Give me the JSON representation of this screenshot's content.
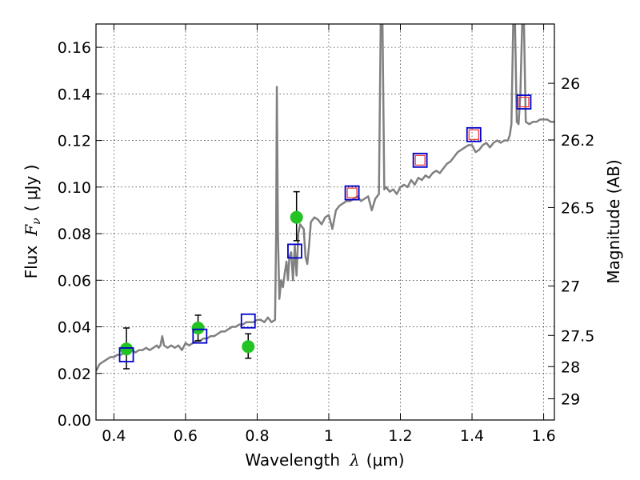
{
  "chart_data": {
    "type": "scatter",
    "xlabel_prefix": "Wavelength",
    "xlabel_symbol": "λ",
    "xlabel_unit": "(μm)",
    "ylabel_prefix": "Flux",
    "ylabel_symbol": "F",
    "ylabel_subscript": "ν",
    "ylabel_unit": "( μJy )",
    "y2label": "Magnitude (AB)",
    "xlim": [
      0.35,
      1.63
    ],
    "ylim": [
      0.0,
      0.17
    ],
    "grid": true,
    "x_ticks": [
      {
        "value": 0.4,
        "label": "0.4"
      },
      {
        "value": 0.6,
        "label": "0.6"
      },
      {
        "value": 0.8,
        "label": "0.8"
      },
      {
        "value": 1.0,
        "label": "1"
      },
      {
        "value": 1.2,
        "label": "1.2"
      },
      {
        "value": 1.4,
        "label": "1.4"
      },
      {
        "value": 1.6,
        "label": "1.6"
      }
    ],
    "y_ticks": [
      {
        "value": 0.0,
        "label": "0.00"
      },
      {
        "value": 0.02,
        "label": "0.02"
      },
      {
        "value": 0.04,
        "label": "0.04"
      },
      {
        "value": 0.06,
        "label": "0.06"
      },
      {
        "value": 0.08,
        "label": "0.08"
      },
      {
        "value": 0.1,
        "label": "0.10"
      },
      {
        "value": 0.12,
        "label": "0.12"
      },
      {
        "value": 0.14,
        "label": "0.14"
      },
      {
        "value": 0.16,
        "label": "0.16"
      }
    ],
    "y2_ticks": [
      {
        "value": 26,
        "label": "26"
      },
      {
        "value": 26.2,
        "label": "26.2"
      },
      {
        "value": 26.5,
        "label": "26.5"
      },
      {
        "value": 27,
        "label": "27"
      },
      {
        "value": 27.5,
        "label": "27.5"
      },
      {
        "value": 28,
        "label": "28"
      },
      {
        "value": 29,
        "label": "29"
      }
    ],
    "series": [
      {
        "kind": "line",
        "color": "#808080",
        "points": [
          [
            0.35,
            0.021
          ],
          [
            0.36,
            0.024
          ],
          [
            0.37,
            0.025
          ],
          [
            0.38,
            0.026
          ],
          [
            0.39,
            0.027
          ],
          [
            0.4,
            0.027
          ],
          [
            0.41,
            0.028
          ],
          [
            0.42,
            0.028
          ],
          [
            0.43,
            0.029
          ],
          [
            0.44,
            0.029
          ],
          [
            0.45,
            0.03
          ],
          [
            0.46,
            0.029
          ],
          [
            0.47,
            0.03
          ],
          [
            0.48,
            0.03
          ],
          [
            0.49,
            0.031
          ],
          [
            0.5,
            0.03
          ],
          [
            0.51,
            0.031
          ],
          [
            0.52,
            0.032
          ],
          [
            0.525,
            0.031
          ],
          [
            0.53,
            0.032
          ],
          [
            0.535,
            0.036
          ],
          [
            0.54,
            0.032
          ],
          [
            0.55,
            0.031
          ],
          [
            0.56,
            0.032
          ],
          [
            0.57,
            0.031
          ],
          [
            0.58,
            0.032
          ],
          [
            0.59,
            0.03
          ],
          [
            0.6,
            0.033
          ],
          [
            0.61,
            0.032
          ],
          [
            0.62,
            0.033
          ],
          [
            0.63,
            0.034
          ],
          [
            0.64,
            0.034
          ],
          [
            0.65,
            0.035
          ],
          [
            0.66,
            0.035
          ],
          [
            0.67,
            0.036
          ],
          [
            0.68,
            0.036
          ],
          [
            0.69,
            0.037
          ],
          [
            0.7,
            0.038
          ],
          [
            0.71,
            0.038
          ],
          [
            0.72,
            0.039
          ],
          [
            0.73,
            0.04
          ],
          [
            0.74,
            0.04
          ],
          [
            0.75,
            0.041
          ],
          [
            0.76,
            0.041
          ],
          [
            0.77,
            0.042
          ],
          [
            0.78,
            0.042
          ],
          [
            0.79,
            0.042
          ],
          [
            0.8,
            0.043
          ],
          [
            0.81,
            0.043
          ],
          [
            0.82,
            0.042
          ],
          [
            0.83,
            0.044
          ],
          [
            0.84,
            0.042
          ],
          [
            0.85,
            0.043
          ],
          [
            0.853,
            0.08
          ],
          [
            0.855,
            0.143
          ],
          [
            0.858,
            0.08
          ],
          [
            0.862,
            0.052
          ],
          [
            0.867,
            0.06
          ],
          [
            0.872,
            0.057
          ],
          [
            0.877,
            0.063
          ],
          [
            0.882,
            0.068
          ],
          [
            0.886,
            0.06
          ],
          [
            0.89,
            0.07
          ],
          [
            0.895,
            0.072
          ],
          [
            0.9,
            0.06
          ],
          [
            0.905,
            0.075
          ],
          [
            0.91,
            0.062
          ],
          [
            0.915,
            0.08
          ],
          [
            0.92,
            0.084
          ],
          [
            0.925,
            0.083
          ],
          [
            0.93,
            0.082
          ],
          [
            0.935,
            0.07
          ],
          [
            0.94,
            0.067
          ],
          [
            0.945,
            0.075
          ],
          [
            0.95,
            0.085
          ],
          [
            0.96,
            0.087
          ],
          [
            0.97,
            0.086
          ],
          [
            0.98,
            0.084
          ],
          [
            0.99,
            0.087
          ],
          [
            1.0,
            0.088
          ],
          [
            1.01,
            0.082
          ],
          [
            1.02,
            0.09
          ],
          [
            1.03,
            0.092
          ],
          [
            1.04,
            0.093
          ],
          [
            1.05,
            0.094
          ],
          [
            1.06,
            0.094
          ],
          [
            1.07,
            0.095
          ],
          [
            1.08,
            0.096
          ],
          [
            1.09,
            0.094
          ],
          [
            1.1,
            0.095
          ],
          [
            1.11,
            0.096
          ],
          [
            1.12,
            0.09
          ],
          [
            1.13,
            0.095
          ],
          [
            1.14,
            0.097
          ],
          [
            1.145,
            0.17
          ],
          [
            1.15,
            0.17
          ],
          [
            1.155,
            0.099
          ],
          [
            1.16,
            0.1
          ],
          [
            1.17,
            0.098
          ],
          [
            1.18,
            0.099
          ],
          [
            1.19,
            0.097
          ],
          [
            1.2,
            0.1
          ],
          [
            1.21,
            0.101
          ],
          [
            1.22,
            0.1
          ],
          [
            1.23,
            0.103
          ],
          [
            1.24,
            0.101
          ],
          [
            1.25,
            0.104
          ],
          [
            1.26,
            0.103
          ],
          [
            1.27,
            0.105
          ],
          [
            1.28,
            0.104
          ],
          [
            1.29,
            0.106
          ],
          [
            1.3,
            0.107
          ],
          [
            1.31,
            0.106
          ],
          [
            1.32,
            0.108
          ],
          [
            1.33,
            0.11
          ],
          [
            1.34,
            0.111
          ],
          [
            1.35,
            0.113
          ],
          [
            1.36,
            0.115
          ],
          [
            1.37,
            0.116
          ],
          [
            1.38,
            0.117
          ],
          [
            1.39,
            0.118
          ],
          [
            1.4,
            0.118
          ],
          [
            1.41,
            0.115
          ],
          [
            1.42,
            0.116
          ],
          [
            1.43,
            0.118
          ],
          [
            1.44,
            0.119
          ],
          [
            1.45,
            0.117
          ],
          [
            1.46,
            0.119
          ],
          [
            1.47,
            0.12
          ],
          [
            1.48,
            0.119
          ],
          [
            1.49,
            0.12
          ],
          [
            1.5,
            0.12
          ],
          [
            1.505,
            0.122
          ],
          [
            1.51,
            0.127
          ],
          [
            1.515,
            0.17
          ],
          [
            1.52,
            0.17
          ],
          [
            1.525,
            0.128
          ],
          [
            1.53,
            0.127
          ],
          [
            1.535,
            0.14
          ],
          [
            1.54,
            0.17
          ],
          [
            1.545,
            0.17
          ],
          [
            1.55,
            0.128
          ],
          [
            1.56,
            0.127
          ],
          [
            1.57,
            0.128
          ],
          [
            1.58,
            0.128
          ],
          [
            1.59,
            0.129
          ],
          [
            1.6,
            0.129
          ],
          [
            1.61,
            0.129
          ],
          [
            1.62,
            0.128
          ],
          [
            1.63,
            0.128
          ]
        ]
      },
      {
        "kind": "scatter",
        "marker": "circle",
        "color": "#22c322",
        "points": [
          {
            "x": 0.435,
            "y": 0.0305,
            "err": [
              0.022,
              0.0395
            ]
          },
          {
            "x": 0.635,
            "y": 0.0395,
            "err": [
              0.034,
              0.045
            ]
          },
          {
            "x": 0.775,
            "y": 0.0315,
            "err": [
              0.0265,
              0.037
            ]
          },
          {
            "x": 0.91,
            "y": 0.087,
            "err": [
              0.077,
              0.098
            ]
          }
        ]
      },
      {
        "kind": "scatter",
        "marker": "square",
        "color": "#0000cc",
        "points": [
          {
            "x": 0.435,
            "y": 0.028
          },
          {
            "x": 0.64,
            "y": 0.036
          },
          {
            "x": 0.775,
            "y": 0.0425
          },
          {
            "x": 0.905,
            "y": 0.0725
          },
          {
            "x": 1.065,
            "y": 0.0975
          },
          {
            "x": 1.255,
            "y": 0.1115
          },
          {
            "x": 1.405,
            "y": 0.1225
          },
          {
            "x": 1.545,
            "y": 0.1365
          }
        ]
      },
      {
        "kind": "scatter",
        "marker": "square-small",
        "color": "#e83232",
        "points": [
          {
            "x": 1.065,
            "y": 0.0975
          },
          {
            "x": 1.255,
            "y": 0.1115
          },
          {
            "x": 1.405,
            "y": 0.1225
          },
          {
            "x": 1.545,
            "y": 0.1365
          }
        ]
      }
    ]
  }
}
